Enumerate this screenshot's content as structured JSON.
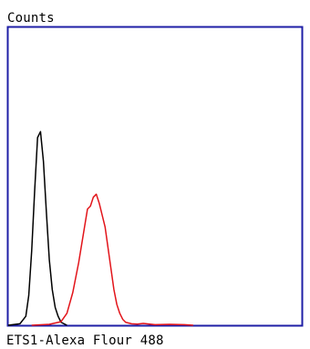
{
  "chart_data": {
    "type": "line",
    "title": "",
    "xlabel": "ETS1-Alexa Flour 488",
    "ylabel": "Counts",
    "xlim": [
      0,
      100
    ],
    "ylim": [
      0,
      100
    ],
    "grid": false,
    "legend": "none",
    "frame_color": "#1f1fa6",
    "series": [
      {
        "color": "#000000",
        "x": [
          0,
          4,
          6,
          7,
          8,
          9,
          10,
          11,
          12,
          13,
          14,
          15,
          16,
          17,
          18,
          19,
          20
        ],
        "y": [
          0,
          0.5,
          3,
          10,
          25,
          45,
          63,
          65,
          55,
          38,
          22,
          12,
          6,
          3,
          1,
          0.5,
          0
        ]
      },
      {
        "color": "#e2141a",
        "x": [
          8,
          14,
          18,
          20,
          22,
          24,
          26,
          27,
          28,
          29,
          30,
          31,
          32,
          33,
          34,
          35,
          36,
          37,
          38,
          39,
          40,
          42,
          44,
          46,
          50,
          55,
          60,
          63
        ],
        "y": [
          0,
          0.3,
          1.2,
          4,
          11,
          21,
          33,
          39,
          40,
          43,
          44,
          41,
          37,
          33,
          26,
          19,
          12,
          7,
          4,
          2,
          1,
          0.5,
          0.4,
          0.6,
          0.2,
          0.3,
          0.2,
          0
        ]
      }
    ]
  }
}
